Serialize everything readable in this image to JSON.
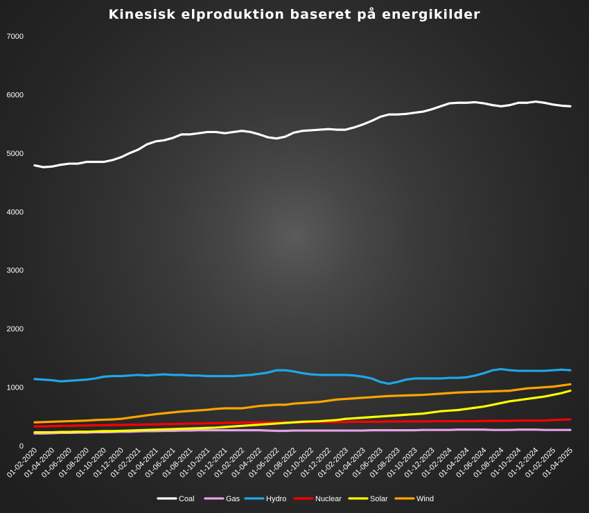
{
  "chart_data": {
    "type": "line",
    "title": "Kinesisk elproduktion baseret på energikilder",
    "xlabel": "",
    "ylabel": "",
    "ylim": [
      0,
      7000
    ],
    "yticks": [
      0,
      1000,
      2000,
      3000,
      4000,
      5000,
      6000,
      7000
    ],
    "grid": false,
    "legend_position": "bottom",
    "x": [
      "01-02-2020",
      "01-03-2020",
      "01-04-2020",
      "01-05-2020",
      "01-06-2020",
      "01-07-2020",
      "01-08-2020",
      "01-09-2020",
      "01-10-2020",
      "01-11-2020",
      "01-12-2020",
      "01-01-2021",
      "01-02-2021",
      "01-03-2021",
      "01-04-2021",
      "01-05-2021",
      "01-06-2021",
      "01-07-2021",
      "01-08-2021",
      "01-09-2021",
      "01-10-2021",
      "01-11-2021",
      "01-12-2021",
      "01-01-2022",
      "01-02-2022",
      "01-03-2022",
      "01-04-2022",
      "01-05-2022",
      "01-06-2022",
      "01-07-2022",
      "01-08-2022",
      "01-09-2022",
      "01-10-2022",
      "01-11-2022",
      "01-12-2022",
      "01-01-2023",
      "01-02-2023",
      "01-03-2023",
      "01-04-2023",
      "01-05-2023",
      "01-06-2023",
      "01-07-2023",
      "01-08-2023",
      "01-09-2023",
      "01-10-2023",
      "01-11-2023",
      "01-12-2023",
      "01-01-2024",
      "01-02-2024",
      "01-03-2024",
      "01-04-2024",
      "01-05-2024",
      "01-06-2024",
      "01-07-2024",
      "01-08-2024",
      "01-09-2024",
      "01-10-2024",
      "01-11-2024",
      "01-12-2024",
      "01-01-2025",
      "01-02-2025",
      "01-03-2025",
      "01-04-2025"
    ],
    "xtick_labels": [
      "01-02-2020",
      "01-04-2020",
      "01-06-2020",
      "01-08-2020",
      "01-10-2020",
      "01-12-2020",
      "01-02-2021",
      "01-04-2021",
      "01-06-2021",
      "01-08-2021",
      "01-10-2021",
      "01-12-2021",
      "01-02-2022",
      "01-04-2022",
      "01-06-2022",
      "01-08-2022",
      "01-10-2022",
      "01-12-2022",
      "01-02-2023",
      "01-04-2023",
      "01-06-2023",
      "01-08-2023",
      "01-10-2023",
      "01-12-2023",
      "01-02-2024",
      "01-04-2024",
      "01-06-2024",
      "01-08-2024",
      "01-10-2024",
      "01-12-2024",
      "01-02-2025",
      "01-04-2025"
    ],
    "series": [
      {
        "name": "Coal",
        "color": "#ffffff",
        "values": [
          4790,
          4760,
          4770,
          4800,
          4820,
          4820,
          4850,
          4850,
          4850,
          4880,
          4930,
          5000,
          5060,
          5150,
          5200,
          5220,
          5260,
          5320,
          5320,
          5340,
          5360,
          5360,
          5340,
          5360,
          5380,
          5360,
          5320,
          5270,
          5250,
          5280,
          5350,
          5380,
          5390,
          5400,
          5410,
          5400,
          5400,
          5440,
          5490,
          5550,
          5620,
          5660,
          5660,
          5670,
          5690,
          5710,
          5750,
          5800,
          5850,
          5860,
          5860,
          5870,
          5850,
          5820,
          5800,
          5820,
          5860,
          5860,
          5880,
          5860,
          5830,
          5810,
          5800
        ]
      },
      {
        "name": "Gas",
        "color": "#e6a3e6",
        "values": [
          210,
          210,
          215,
          220,
          220,
          225,
          225,
          230,
          230,
          235,
          240,
          240,
          245,
          250,
          250,
          255,
          255,
          260,
          260,
          265,
          265,
          265,
          265,
          265,
          265,
          265,
          265,
          260,
          255,
          255,
          260,
          260,
          260,
          260,
          260,
          260,
          260,
          260,
          260,
          265,
          265,
          265,
          265,
          265,
          265,
          270,
          270,
          270,
          270,
          275,
          275,
          275,
          275,
          270,
          270,
          270,
          275,
          275,
          275,
          270,
          270,
          270,
          270
        ]
      },
      {
        "name": "Hydro",
        "color": "#1ea8e8",
        "values": [
          1140,
          1130,
          1120,
          1100,
          1110,
          1120,
          1130,
          1150,
          1180,
          1190,
          1190,
          1200,
          1210,
          1200,
          1210,
          1220,
          1210,
          1210,
          1200,
          1200,
          1190,
          1190,
          1190,
          1190,
          1200,
          1210,
          1230,
          1250,
          1290,
          1290,
          1270,
          1240,
          1220,
          1210,
          1210,
          1210,
          1210,
          1200,
          1180,
          1150,
          1090,
          1060,
          1090,
          1130,
          1150,
          1150,
          1150,
          1150,
          1160,
          1160,
          1170,
          1200,
          1240,
          1290,
          1310,
          1290,
          1280,
          1280,
          1280,
          1280,
          1290,
          1300,
          1290
        ]
      },
      {
        "name": "Nuclear",
        "color": "#ff0000",
        "values": [
          330,
          330,
          335,
          340,
          340,
          345,
          345,
          350,
          350,
          355,
          355,
          360,
          360,
          365,
          365,
          370,
          370,
          375,
          380,
          380,
          385,
          385,
          390,
          390,
          395,
          395,
          400,
          400,
          400,
          400,
          400,
          400,
          405,
          405,
          405,
          405,
          405,
          410,
          410,
          410,
          410,
          415,
          415,
          415,
          415,
          415,
          420,
          420,
          420,
          420,
          420,
          420,
          425,
          425,
          425,
          425,
          430,
          430,
          430,
          430,
          440,
          445,
          450
        ]
      },
      {
        "name": "Solar",
        "color": "#ffff00",
        "values": [
          230,
          230,
          230,
          235,
          235,
          240,
          240,
          245,
          250,
          250,
          255,
          260,
          265,
          270,
          275,
          280,
          285,
          290,
          295,
          300,
          305,
          310,
          320,
          330,
          340,
          350,
          360,
          370,
          380,
          390,
          400,
          410,
          415,
          420,
          430,
          440,
          460,
          470,
          480,
          490,
          500,
          510,
          520,
          530,
          540,
          550,
          570,
          590,
          600,
          610,
          630,
          650,
          670,
          700,
          730,
          760,
          780,
          800,
          820,
          840,
          870,
          900,
          940
        ]
      },
      {
        "name": "Wind",
        "color": "#ffa500",
        "values": [
          400,
          405,
          410,
          415,
          420,
          425,
          430,
          440,
          445,
          450,
          460,
          480,
          500,
          520,
          540,
          555,
          570,
          585,
          595,
          605,
          615,
          630,
          640,
          640,
          640,
          660,
          680,
          690,
          700,
          700,
          720,
          730,
          740,
          750,
          770,
          790,
          800,
          810,
          820,
          830,
          840,
          850,
          855,
          860,
          865,
          870,
          880,
          890,
          900,
          910,
          915,
          920,
          925,
          930,
          935,
          940,
          960,
          980,
          990,
          1000,
          1010,
          1030,
          1050
        ]
      }
    ]
  }
}
